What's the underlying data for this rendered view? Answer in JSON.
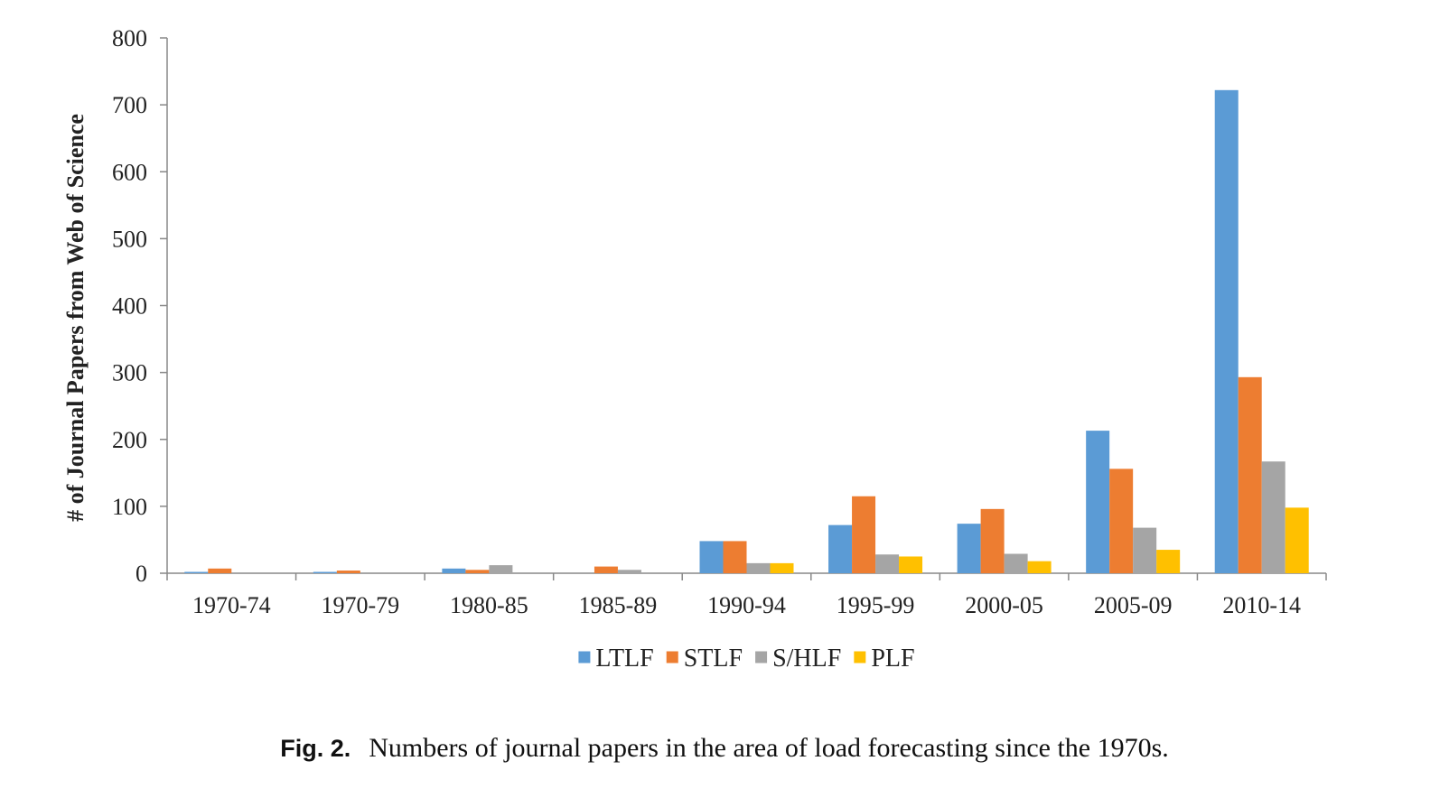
{
  "chart_data": {
    "type": "bar",
    "categories": [
      "1970-74",
      "1970-79",
      "1980-85",
      "1985-89",
      "1990-94",
      "1995-99",
      "2000-05",
      "2005-09",
      "2010-14"
    ],
    "series": [
      {
        "name": "LTLF",
        "color": "#5B9BD5",
        "values": [
          2,
          2,
          7,
          0,
          48,
          72,
          74,
          213,
          722
        ]
      },
      {
        "name": "STLF",
        "color": "#ED7D31",
        "values": [
          7,
          4,
          5,
          10,
          48,
          115,
          96,
          156,
          293
        ]
      },
      {
        "name": "S/HLF",
        "color": "#A5A5A5",
        "values": [
          0,
          0,
          12,
          5,
          15,
          28,
          29,
          68,
          167
        ]
      },
      {
        "name": "PLF",
        "color": "#FFC000",
        "values": [
          0,
          0,
          0,
          0,
          15,
          25,
          18,
          35,
          98
        ]
      }
    ],
    "ylabel": "# of Journal Papers from Web of Science",
    "xlabel": "",
    "ylim": [
      0,
      800
    ],
    "yticks": [
      0,
      100,
      200,
      300,
      400,
      500,
      600,
      700,
      800
    ],
    "legend_position": "bottom",
    "grid": false
  },
  "caption": {
    "label": "Fig. 2.",
    "text": "Numbers of journal papers in the area of load forecasting since the 1970s."
  }
}
